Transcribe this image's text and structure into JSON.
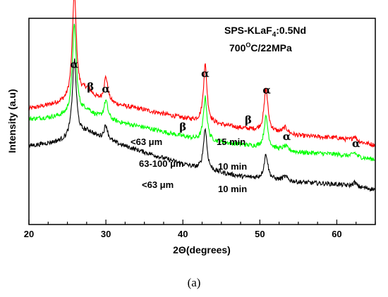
{
  "chart_data": {
    "type": "line",
    "xlabel": "2Θ(degrees)",
    "ylabel": "Intensity (a.u)",
    "xlim": [
      20,
      65
    ],
    "x_ticks": [
      20,
      30,
      40,
      50,
      60
    ],
    "y_ticks_shown": false,
    "grid": false,
    "legend": "none",
    "sample_title_prefix": "SPS-KLaF",
    "sample_title_subscript": "4",
    "sample_title_suffix": ":0.5Nd",
    "condition_prefix": "700",
    "condition_sup": "O",
    "condition_suffix": "C/22MPa",
    "series": [
      {
        "label_size": "<63 μm",
        "label_time": "15 min",
        "color": "#ff0000",
        "baseline": [
          [
            20,
            0.56
          ],
          [
            24,
            0.585
          ],
          [
            28,
            0.6
          ],
          [
            35,
            0.555
          ],
          [
            42,
            0.5
          ],
          [
            48,
            0.465
          ],
          [
            55,
            0.43
          ],
          [
            60,
            0.42
          ],
          [
            65,
            0.385
          ]
        ],
        "peaks": [
          {
            "x": 25.9,
            "h": 0.52,
            "w": 0.32
          },
          {
            "x": 27.5,
            "h": 0.05,
            "w": 0.9
          },
          {
            "x": 30.0,
            "h": 0.12,
            "w": 0.3
          },
          {
            "x": 42.9,
            "h": 0.28,
            "w": 0.28
          },
          {
            "x": 50.8,
            "h": 0.205,
            "w": 0.3
          },
          {
            "x": 53.3,
            "h": 0.03,
            "w": 0.4
          },
          {
            "x": 62.3,
            "h": 0.025,
            "w": 0.3
          }
        ]
      },
      {
        "label_size": "63-100 μm",
        "label_time": "10 min",
        "color": "#00ff00",
        "baseline": [
          [
            20,
            0.51
          ],
          [
            24,
            0.52
          ],
          [
            28,
            0.52
          ],
          [
            35,
            0.47
          ],
          [
            42,
            0.41
          ],
          [
            48,
            0.385
          ],
          [
            55,
            0.35
          ],
          [
            60,
            0.34
          ],
          [
            65,
            0.315
          ]
        ],
        "peaks": [
          {
            "x": 25.9,
            "h": 0.44,
            "w": 0.32
          },
          {
            "x": 27.5,
            "h": 0.03,
            "w": 0.9
          },
          {
            "x": 30.0,
            "h": 0.09,
            "w": 0.3
          },
          {
            "x": 42.9,
            "h": 0.21,
            "w": 0.28
          },
          {
            "x": 50.8,
            "h": 0.15,
            "w": 0.3
          },
          {
            "x": 53.3,
            "h": 0.02,
            "w": 0.4
          },
          {
            "x": 62.3,
            "h": 0.02,
            "w": 0.3
          }
        ]
      },
      {
        "label_size": "<63 μm",
        "label_time": "10 min",
        "color": "#000000",
        "baseline": [
          [
            20,
            0.38
          ],
          [
            24,
            0.4
          ],
          [
            28,
            0.43
          ],
          [
            35,
            0.35
          ],
          [
            42,
            0.27
          ],
          [
            48,
            0.23
          ],
          [
            55,
            0.205
          ],
          [
            60,
            0.195
          ],
          [
            65,
            0.17
          ]
        ],
        "peaks": [
          {
            "x": 25.9,
            "h": 0.38,
            "w": 0.32
          },
          {
            "x": 27.5,
            "h": 0.02,
            "w": 0.9
          },
          {
            "x": 30.0,
            "h": 0.07,
            "w": 0.3
          },
          {
            "x": 42.9,
            "h": 0.2,
            "w": 0.28
          },
          {
            "x": 50.8,
            "h": 0.12,
            "w": 0.3
          },
          {
            "x": 53.3,
            "h": 0.02,
            "w": 0.4
          },
          {
            "x": 62.3,
            "h": 0.02,
            "w": 0.3
          }
        ]
      }
    ],
    "peak_labels": [
      {
        "symbol": "α",
        "x": 25.9
      },
      {
        "symbol": "β",
        "x": 28.0
      },
      {
        "symbol": "α",
        "x": 30.0
      },
      {
        "symbol": "β",
        "x": 40.0
      },
      {
        "symbol": "α",
        "x": 42.9
      },
      {
        "symbol": "β",
        "x": 48.5
      },
      {
        "symbol": "α",
        "x": 50.9
      },
      {
        "symbol": "α",
        "x": 53.5
      },
      {
        "symbol": "α",
        "x": 62.5
      }
    ]
  },
  "caption": "(a)"
}
